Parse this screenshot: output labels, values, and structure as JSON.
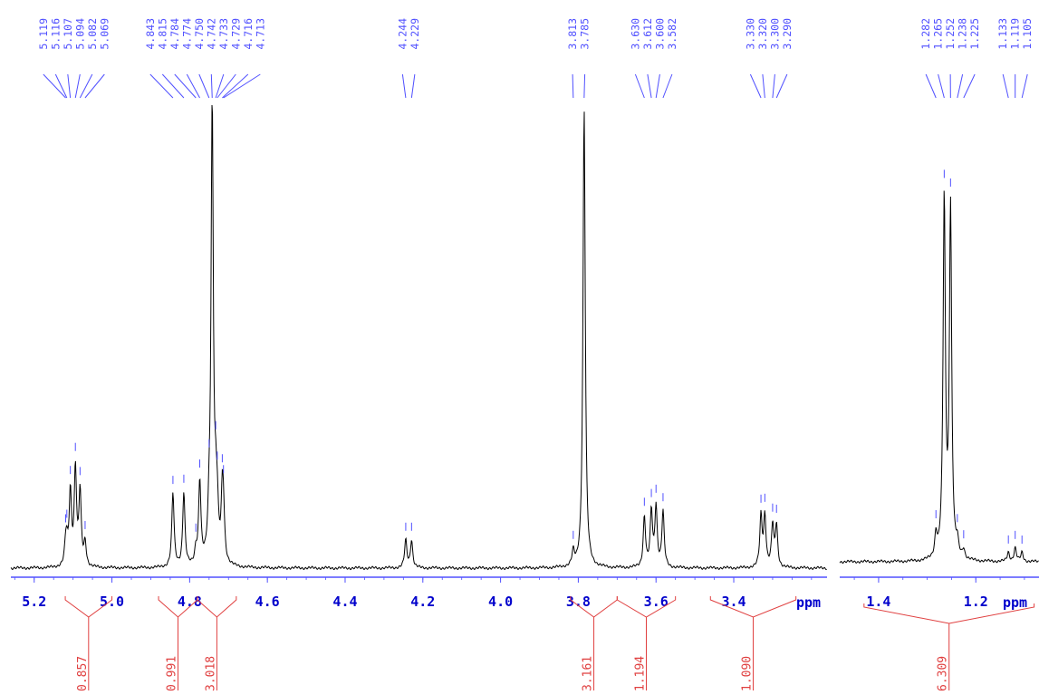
{
  "chart_data": [
    {
      "type": "line",
      "xlabel": "ppm",
      "xlim": [
        5.26,
        3.16
      ],
      "ticks": [
        "5.2",
        "5.0",
        "4.8",
        "4.6",
        "4.4",
        "4.2",
        "4.0",
        "3.8",
        "3.6",
        "3.4"
      ],
      "tick_values": [
        5.2,
        5.0,
        4.8,
        4.6,
        4.4,
        4.2,
        4.0,
        3.8,
        3.6,
        3.4
      ],
      "peak_label_groups": [
        [
          "5.119",
          "5.116",
          "5.107",
          "5.094",
          "5.082",
          "5.069"
        ],
        [
          "4.843",
          "4.815",
          "4.784",
          "4.774",
          "4.750",
          "4.742",
          "4.733",
          "4.729",
          "4.716",
          "4.713"
        ],
        [
          "4.244",
          "4.229"
        ],
        [
          "3.813",
          "3.785"
        ],
        [
          "3.630",
          "3.612",
          "3.600",
          "3.582"
        ],
        [
          "3.330",
          "3.320",
          "3.300",
          "3.290"
        ]
      ],
      "peaks": [
        {
          "x": 5.119,
          "h": 0.04
        },
        {
          "x": 5.116,
          "h": 0.04
        },
        {
          "x": 5.107,
          "h": 0.16
        },
        {
          "x": 5.094,
          "h": 0.21
        },
        {
          "x": 5.082,
          "h": 0.16
        },
        {
          "x": 5.069,
          "h": 0.05
        },
        {
          "x": 4.843,
          "h": 0.16
        },
        {
          "x": 4.815,
          "h": 0.16
        },
        {
          "x": 4.784,
          "h": 0.03
        },
        {
          "x": 4.774,
          "h": 0.18
        },
        {
          "x": 4.75,
          "h": 0.07
        },
        {
          "x": 4.742,
          "h": 1.0
        },
        {
          "x": 4.733,
          "h": 0.1
        },
        {
          "x": 4.729,
          "h": 0.09
        },
        {
          "x": 4.716,
          "h": 0.13
        },
        {
          "x": 4.713,
          "h": 0.09
        },
        {
          "x": 4.244,
          "h": 0.06
        },
        {
          "x": 4.229,
          "h": 0.06
        },
        {
          "x": 3.813,
          "h": 0.03
        },
        {
          "x": 3.785,
          "h": 1.0
        },
        {
          "x": 3.63,
          "h": 0.11
        },
        {
          "x": 3.612,
          "h": 0.12
        },
        {
          "x": 3.6,
          "h": 0.13
        },
        {
          "x": 3.582,
          "h": 0.12
        },
        {
          "x": 3.33,
          "h": 0.11
        },
        {
          "x": 3.32,
          "h": 0.11
        },
        {
          "x": 3.3,
          "h": 0.09
        },
        {
          "x": 3.29,
          "h": 0.09
        }
      ],
      "integrals": [
        {
          "range": [
            5.12,
            5.0
          ],
          "value": "0.857"
        },
        {
          "range": [
            4.88,
            4.78
          ],
          "value": "0.991"
        },
        {
          "range": [
            4.78,
            4.68
          ],
          "value": "3.018"
        },
        {
          "range": [
            3.82,
            3.7
          ],
          "value": "3.161"
        },
        {
          "range": [
            3.7,
            3.55
          ],
          "value": "1.194"
        },
        {
          "range": [
            3.46,
            3.24
          ],
          "value": "1.090"
        }
      ]
    },
    {
      "type": "line",
      "xlabel": "ppm",
      "xlim": [
        1.48,
        1.07
      ],
      "ticks": [
        "1.4",
        "1.2"
      ],
      "tick_values": [
        1.4,
        1.2
      ],
      "peak_label_groups": [
        [
          "1.282",
          "1.265",
          "1.252",
          "1.238",
          "1.225"
        ],
        [
          "1.133",
          "1.119",
          "1.105"
        ]
      ],
      "peaks": [
        {
          "x": 1.282,
          "h": 0.05
        },
        {
          "x": 1.265,
          "h": 0.79
        },
        {
          "x": 1.252,
          "h": 0.77
        },
        {
          "x": 1.238,
          "h": 0.03
        },
        {
          "x": 1.225,
          "h": 0.02
        },
        {
          "x": 1.133,
          "h": 0.02
        },
        {
          "x": 1.119,
          "h": 0.03
        },
        {
          "x": 1.105,
          "h": 0.02
        }
      ],
      "integrals": [
        {
          "range": [
            1.43,
            1.08
          ],
          "value": "6.309"
        }
      ]
    }
  ],
  "colors": {
    "spectrum": "#000000",
    "peak_labels": "#5050ff",
    "axis": "#5050ff",
    "tick_labels": "#0000cc",
    "integrals": "#e04040"
  }
}
